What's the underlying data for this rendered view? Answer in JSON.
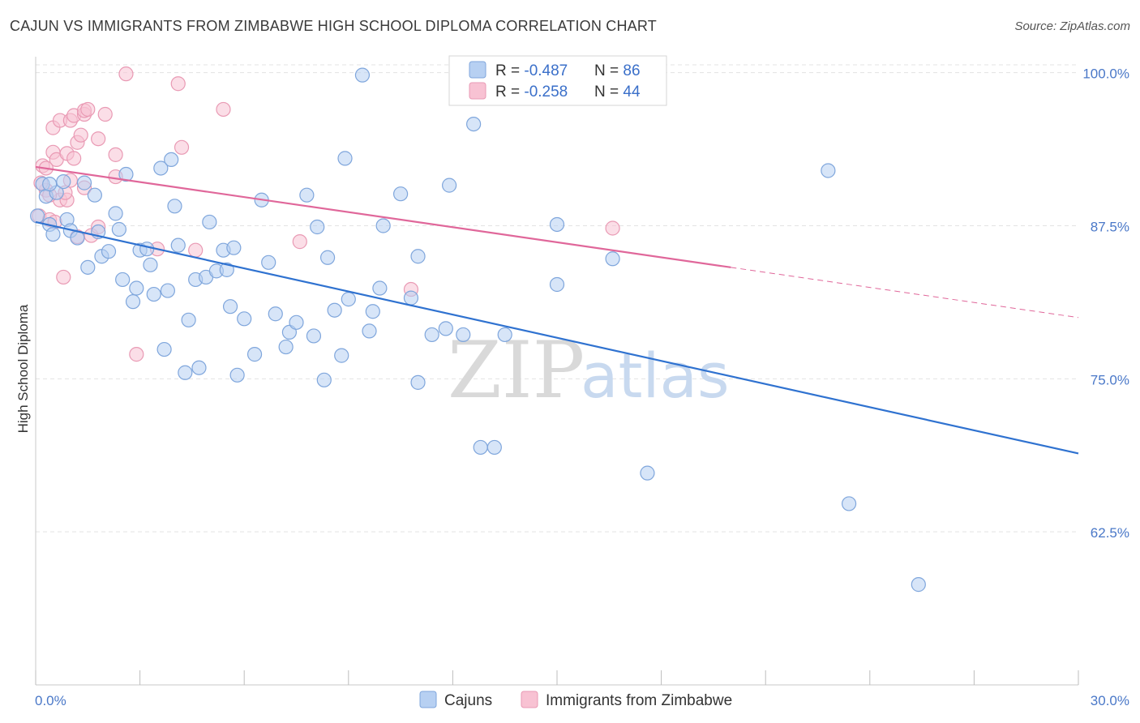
{
  "header": {
    "title": "CAJUN VS IMMIGRANTS FROM ZIMBABWE HIGH SCHOOL DIPLOMA CORRELATION CHART",
    "source": "Source: ZipAtlas.com"
  },
  "watermark": {
    "zip": "ZIP",
    "atlas": "atlas"
  },
  "colors": {
    "blue_fill": "#b7d0f2",
    "blue_stroke": "#7fa6dc",
    "blue_line": "#2f72d0",
    "pink_fill": "#f8c2d3",
    "pink_stroke": "#e99ab4",
    "pink_line": "#e0679a",
    "grid": "#e3e3e3",
    "tick_text": "#4a78c8"
  },
  "legend": {
    "rows": [
      {
        "r_label": "R = ",
        "r_value": "-0.487",
        "n_label": "N = ",
        "n_value": "86"
      },
      {
        "r_label": "R = ",
        "r_value": "-0.258",
        "n_label": "N = ",
        "n_value": "44"
      }
    ]
  },
  "chart_data": {
    "type": "scatter",
    "title": "CAJUN VS IMMIGRANTS FROM ZIMBABWE HIGH SCHOOL DIPLOMA CORRELATION CHART",
    "xlabel": "",
    "ylabel": "High School Diploma",
    "xlim": [
      0,
      30
    ],
    "ylim": [
      50.0,
      101.3
    ],
    "x_tick_labels": [
      "0.0%",
      "30.0%"
    ],
    "y_ticks": [
      {
        "value": 100.0,
        "label": "100.0%"
      },
      {
        "value": 87.5,
        "label": "87.5%"
      },
      {
        "value": 75.0,
        "label": "75.0%"
      },
      {
        "value": 62.5,
        "label": "62.5%"
      }
    ],
    "series": [
      {
        "name": "Cajuns",
        "color": "#b7d0f2",
        "trend": {
          "x": [
            0,
            30
          ],
          "y": [
            87.8,
            68.9
          ]
        },
        "points": [
          [
            0.05,
            88.3
          ],
          [
            0.2,
            90.9
          ],
          [
            0.3,
            89.9
          ],
          [
            0.4,
            87.6
          ],
          [
            0.5,
            86.8
          ],
          [
            0.6,
            90.2
          ],
          [
            0.8,
            91.1
          ],
          [
            0.9,
            88.0
          ],
          [
            1.0,
            87.1
          ],
          [
            1.2,
            86.5
          ],
          [
            1.4,
            91.0
          ],
          [
            1.5,
            84.1
          ],
          [
            1.7,
            90.0
          ],
          [
            1.9,
            85.0
          ],
          [
            2.1,
            85.4
          ],
          [
            2.3,
            88.5
          ],
          [
            2.4,
            87.2
          ],
          [
            2.5,
            83.1
          ],
          [
            2.6,
            91.7
          ],
          [
            2.8,
            81.3
          ],
          [
            2.9,
            82.4
          ],
          [
            3.0,
            85.5
          ],
          [
            3.2,
            85.6
          ],
          [
            3.3,
            84.3
          ],
          [
            3.4,
            81.9
          ],
          [
            3.6,
            92.2
          ],
          [
            3.7,
            77.4
          ],
          [
            3.8,
            82.2
          ],
          [
            3.9,
            92.9
          ],
          [
            4.0,
            89.1
          ],
          [
            4.1,
            85.9
          ],
          [
            4.3,
            75.5
          ],
          [
            4.4,
            79.8
          ],
          [
            4.6,
            83.1
          ],
          [
            4.7,
            75.9
          ],
          [
            4.9,
            83.3
          ],
          [
            5.0,
            87.8
          ],
          [
            5.2,
            83.8
          ],
          [
            5.4,
            85.5
          ],
          [
            5.5,
            83.9
          ],
          [
            5.6,
            80.9
          ],
          [
            5.7,
            85.7
          ],
          [
            5.8,
            75.3
          ],
          [
            6.0,
            79.9
          ],
          [
            6.3,
            77.0
          ],
          [
            6.5,
            89.6
          ],
          [
            6.7,
            84.5
          ],
          [
            6.9,
            80.3
          ],
          [
            7.2,
            77.6
          ],
          [
            7.3,
            78.8
          ],
          [
            7.5,
            79.6
          ],
          [
            7.8,
            90.0
          ],
          [
            8.0,
            78.5
          ],
          [
            8.1,
            87.4
          ],
          [
            8.3,
            74.9
          ],
          [
            8.4,
            84.9
          ],
          [
            8.6,
            80.6
          ],
          [
            8.8,
            76.9
          ],
          [
            8.9,
            93.0
          ],
          [
            9.0,
            81.5
          ],
          [
            9.4,
            99.8
          ],
          [
            9.6,
            78.9
          ],
          [
            9.7,
            80.5
          ],
          [
            9.9,
            82.4
          ],
          [
            10.0,
            87.5
          ],
          [
            10.8,
            81.6
          ],
          [
            10.5,
            90.1
          ],
          [
            11.0,
            85.0
          ],
          [
            11.0,
            74.7
          ],
          [
            11.4,
            78.6
          ],
          [
            11.8,
            79.1
          ],
          [
            11.9,
            90.8
          ],
          [
            12.3,
            78.6
          ],
          [
            12.6,
            95.8
          ],
          [
            12.8,
            69.4
          ],
          [
            13.2,
            69.4
          ],
          [
            13.5,
            78.6
          ],
          [
            15.0,
            87.6
          ],
          [
            15.0,
            82.7
          ],
          [
            16.6,
            84.8
          ],
          [
            17.6,
            67.3
          ],
          [
            22.8,
            92.0
          ],
          [
            23.4,
            64.8
          ],
          [
            25.4,
            58.2
          ],
          [
            0.4,
            90.9
          ],
          [
            1.8,
            87.0
          ]
        ]
      },
      {
        "name": "Immigrants from Zimbabwe",
        "color": "#f8c2d3",
        "trend": {
          "x": [
            0,
            20
          ],
          "y": [
            92.3,
            84.1
          ]
        },
        "trend_dashed": {
          "x": [
            20,
            30
          ],
          "y": [
            84.1,
            80.0
          ]
        },
        "points": [
          [
            0.1,
            88.3
          ],
          [
            0.2,
            92.4
          ],
          [
            0.3,
            90.4
          ],
          [
            0.4,
            88.0
          ],
          [
            0.5,
            93.5
          ],
          [
            0.5,
            95.5
          ],
          [
            0.6,
            92.9
          ],
          [
            0.7,
            96.1
          ],
          [
            0.7,
            89.6
          ],
          [
            0.8,
            83.3
          ],
          [
            0.9,
            93.4
          ],
          [
            1.0,
            91.2
          ],
          [
            1.0,
            96.1
          ],
          [
            1.1,
            93.0
          ],
          [
            1.1,
            96.5
          ],
          [
            1.2,
            94.3
          ],
          [
            1.3,
            94.9
          ],
          [
            1.4,
            96.6
          ],
          [
            1.4,
            96.9
          ],
          [
            1.5,
            97.0
          ],
          [
            1.6,
            86.7
          ],
          [
            1.8,
            87.4
          ],
          [
            1.8,
            94.6
          ],
          [
            2.0,
            96.6
          ],
          [
            2.3,
            93.3
          ],
          [
            2.3,
            91.5
          ],
          [
            2.6,
            99.9
          ],
          [
            2.9,
            77.0
          ],
          [
            3.5,
            85.6
          ],
          [
            4.1,
            99.1
          ],
          [
            4.2,
            93.9
          ],
          [
            4.6,
            85.5
          ],
          [
            5.4,
            97.0
          ],
          [
            7.6,
            86.2
          ],
          [
            10.8,
            82.3
          ],
          [
            16.6,
            87.3
          ],
          [
            0.4,
            90.0
          ],
          [
            0.9,
            89.6
          ],
          [
            0.3,
            92.2
          ],
          [
            1.2,
            86.6
          ],
          [
            1.4,
            90.6
          ],
          [
            0.15,
            91.0
          ],
          [
            0.55,
            87.8
          ],
          [
            0.85,
            90.2
          ]
        ]
      }
    ],
    "legend_position": "top-center"
  }
}
